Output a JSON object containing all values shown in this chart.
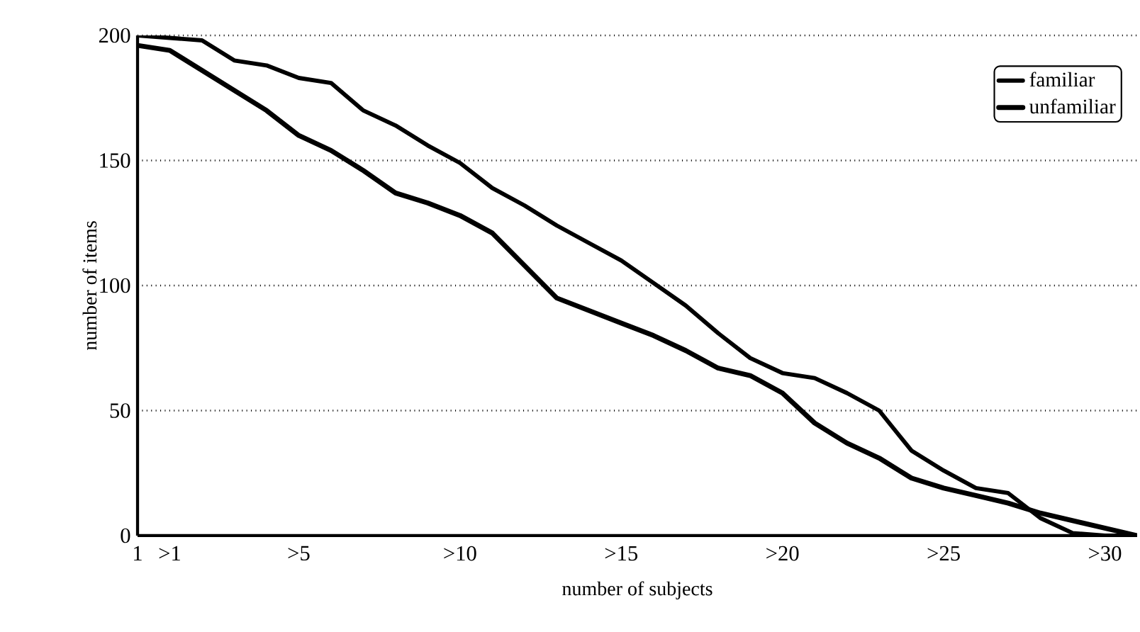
{
  "chart_data": {
    "type": "line",
    "xlabel": "number of subjects",
    "ylabel": "number of items",
    "categories": [
      "1",
      ">1",
      null,
      null,
      null,
      ">5",
      null,
      null,
      null,
      null,
      ">10",
      null,
      null,
      null,
      null,
      ">15",
      null,
      null,
      null,
      null,
      ">20",
      null,
      null,
      null,
      null,
      ">25",
      null,
      null,
      null,
      null,
      ">30",
      null
    ],
    "series": [
      {
        "name": "familiar",
        "color": "#000000",
        "values": [
          200,
          199,
          198,
          190,
          188,
          183,
          181,
          170,
          164,
          156,
          149,
          139,
          132,
          124,
          117,
          110,
          101,
          92,
          81,
          71,
          65,
          63,
          57,
          50,
          34,
          26,
          19,
          17,
          7,
          1,
          0,
          0
        ]
      },
      {
        "name": "unfamiliar",
        "color": "#000000",
        "values": [
          196,
          194,
          186,
          178,
          170,
          160,
          154,
          146,
          137,
          133,
          128,
          121,
          108,
          95,
          90,
          85,
          80,
          74,
          67,
          64,
          57,
          45,
          37,
          31,
          23,
          19,
          16,
          13,
          9,
          6,
          3,
          0
        ]
      }
    ],
    "ylim": [
      0,
      200
    ],
    "yticks": [
      0,
      50,
      100,
      150,
      200
    ],
    "grid": "y",
    "legend": "top right",
    "marker": "none",
    "line_style": "solid"
  }
}
